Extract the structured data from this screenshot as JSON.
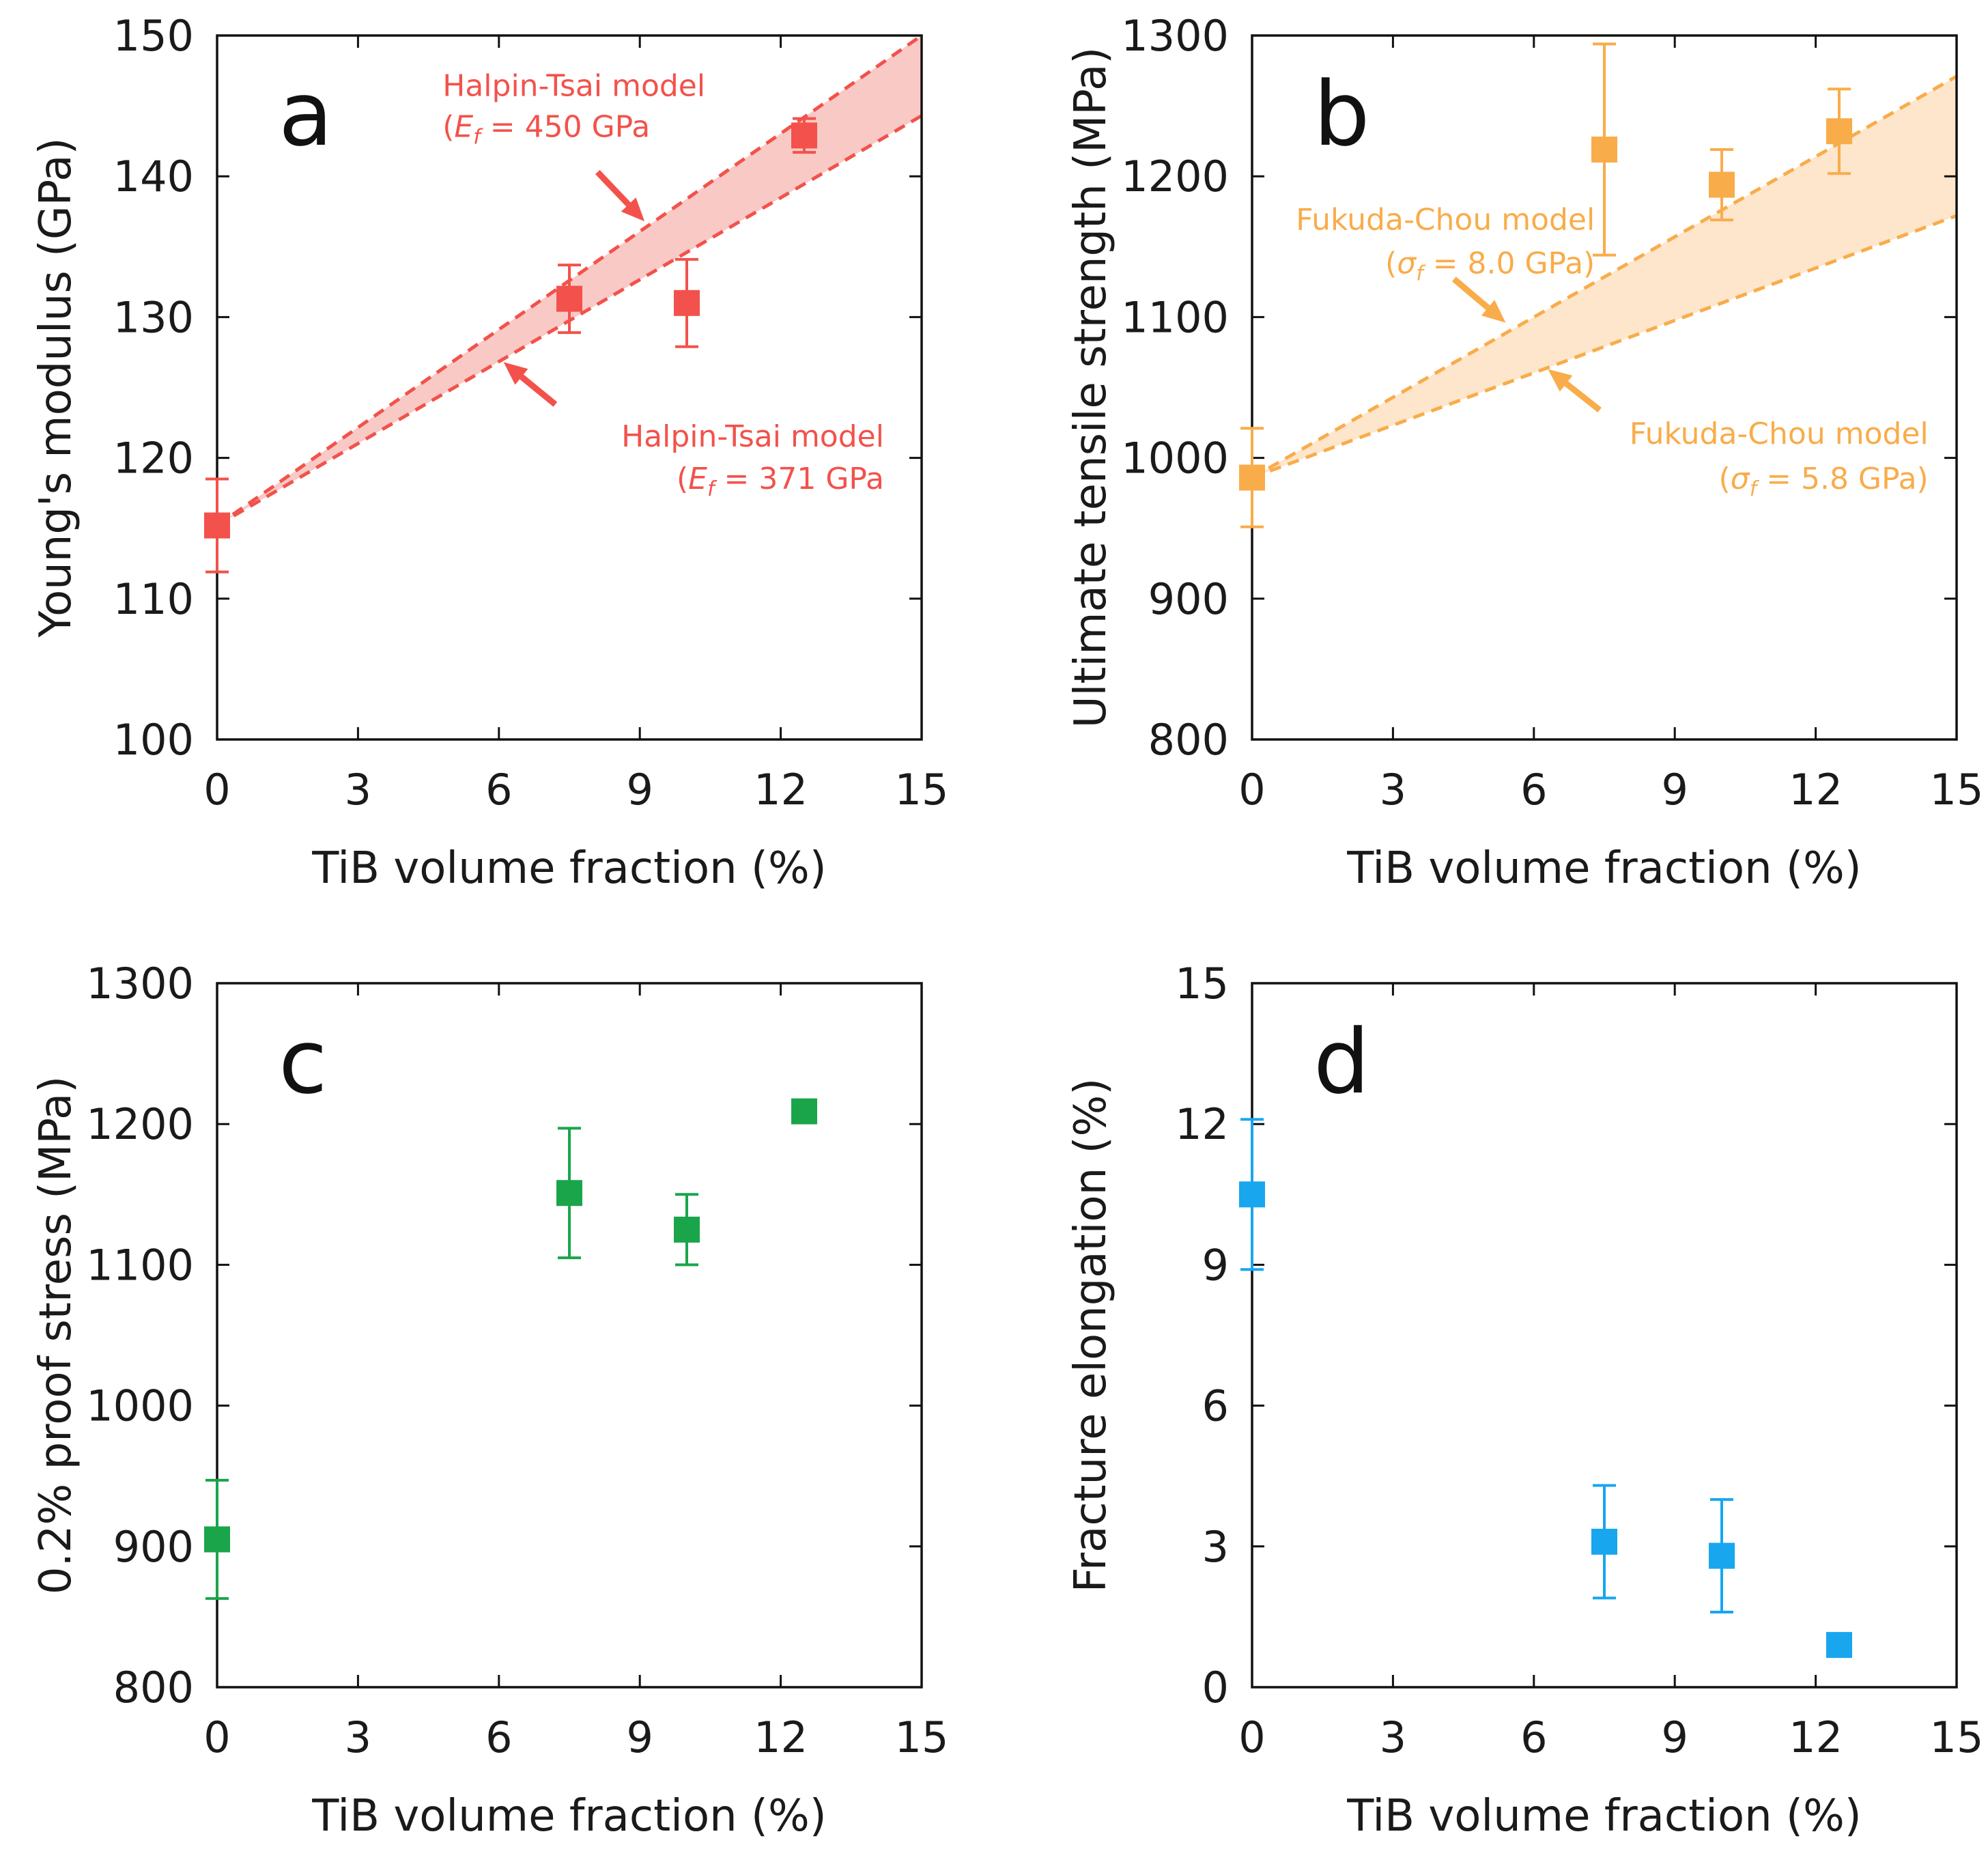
{
  "figure": {
    "panels": [
      "a",
      "b",
      "c",
      "d"
    ]
  },
  "chart_data": [
    {
      "id": "a",
      "type": "scatter",
      "panel_label": "a",
      "color": "#f2524b",
      "fill_color": "#f9c9c6",
      "xlabel": "TiB volume fraction (%)",
      "ylabel": "Young's modulus (GPa)",
      "xlim": [
        0,
        15
      ],
      "ylim": [
        100,
        150
      ],
      "xticks": [
        0,
        3,
        6,
        9,
        12,
        15
      ],
      "yticks": [
        100,
        110,
        120,
        130,
        140,
        150
      ],
      "grid": false,
      "points": [
        {
          "x": 0,
          "y": 115.2,
          "err": 3.3
        },
        {
          "x": 7.5,
          "y": 131.3,
          "err": 2.4
        },
        {
          "x": 10,
          "y": 131.0,
          "err": 3.1
        },
        {
          "x": 12.5,
          "y": 142.9,
          "err": 1.2
        }
      ],
      "models": [
        {
          "name": "Halpin-Tsai model",
          "x": [
            0,
            15
          ],
          "y": [
            115.2,
            150.0
          ]
        },
        {
          "name": "Halpin-Tsai model",
          "x": [
            0,
            15
          ],
          "y": [
            115.2,
            144.3
          ]
        }
      ],
      "shade_between_models": true,
      "annotations": [
        {
          "line1": "Halpin-Tsai model",
          "sym": "E",
          "sub": "f",
          "value": " = 450 GPa",
          "text_x": 4.8,
          "text_y1": 145.7,
          "text_y2": 142.8,
          "anchor": "start",
          "arrow_from": [
            8.1,
            140.3
          ],
          "arrow_to": [
            9.1,
            136.8
          ]
        },
        {
          "line1": "Halpin-Tsai model",
          "sym": "E",
          "sub": "f",
          "value": " = 371 GPa",
          "text_x": 14.2,
          "text_y1": 120.8,
          "text_y2": 117.8,
          "anchor": "end",
          "arrow_from": [
            7.2,
            123.8
          ],
          "arrow_to": [
            6.1,
            126.8
          ]
        }
      ]
    },
    {
      "id": "b",
      "type": "scatter",
      "panel_label": "b",
      "color": "#f9ac4a",
      "fill_color": "#fde6cb",
      "xlabel": "TiB volume fraction (%)",
      "ylabel": "Ultimate tensile strength (MPa)",
      "xlim": [
        0,
        15
      ],
      "ylim": [
        800,
        1300
      ],
      "xticks": [
        0,
        3,
        6,
        9,
        12,
        15
      ],
      "yticks": [
        800,
        900,
        1000,
        1100,
        1200,
        1300
      ],
      "grid": false,
      "points": [
        {
          "x": 0,
          "y": 986,
          "err": 35
        },
        {
          "x": 7.5,
          "y": 1219,
          "err": 75
        },
        {
          "x": 10,
          "y": 1194,
          "err": 25
        },
        {
          "x": 12.5,
          "y": 1232,
          "err": 30
        }
      ],
      "models": [
        {
          "name": "Fukuda-Chou model",
          "x": [
            0,
            15
          ],
          "y": [
            986,
            1271
          ]
        },
        {
          "name": "Fukuda-Chou model",
          "x": [
            0,
            15
          ],
          "y": [
            986,
            1172
          ]
        }
      ],
      "shade_between_models": true,
      "annotations": [
        {
          "line1": "Fukuda-Chou model",
          "sym": "σ",
          "sub": "f",
          "value": " = 8.0 GPa)",
          "text_x": 7.3,
          "text_y1": 1162,
          "text_y2": 1131,
          "anchor": "end",
          "arrow_from": [
            4.3,
            1127
          ],
          "arrow_to": [
            5.4,
            1096
          ]
        },
        {
          "line1": "Fukuda-Chou model",
          "sym": "σ",
          "sub": "f",
          "value": " = 5.8 GPa)",
          "text_x": 14.4,
          "text_y1": 1010,
          "text_y2": 978,
          "anchor": "end",
          "arrow_from": [
            7.4,
            1034
          ],
          "arrow_to": [
            6.3,
            1063
          ]
        }
      ]
    },
    {
      "id": "c",
      "type": "scatter",
      "panel_label": "c",
      "color": "#1aa54b",
      "xlabel": "TiB volume fraction (%)",
      "ylabel": "0.2% proof stress (MPa)",
      "xlim": [
        0,
        15
      ],
      "ylim": [
        800,
        1300
      ],
      "xticks": [
        0,
        3,
        6,
        9,
        12,
        15
      ],
      "yticks": [
        800,
        900,
        1000,
        1100,
        1200,
        1300
      ],
      "grid": false,
      "points": [
        {
          "x": 0,
          "y": 905,
          "err": 42
        },
        {
          "x": 7.5,
          "y": 1151,
          "err": 46
        },
        {
          "x": 10,
          "y": 1125,
          "err": 25
        },
        {
          "x": 12.5,
          "y": 1209,
          "err": 0
        }
      ]
    },
    {
      "id": "d",
      "type": "scatter",
      "panel_label": "d",
      "color": "#18a6ee",
      "xlabel": "TiB volume fraction (%)",
      "ylabel": "Fracture elongation (%)",
      "xlim": [
        0,
        15
      ],
      "ylim": [
        0,
        15
      ],
      "xticks": [
        0,
        3,
        6,
        9,
        12,
        15
      ],
      "yticks": [
        0,
        3,
        6,
        9,
        12,
        15
      ],
      "grid": false,
      "points": [
        {
          "x": 0,
          "y": 10.5,
          "err": 1.6
        },
        {
          "x": 7.5,
          "y": 3.1,
          "err": 1.2
        },
        {
          "x": 10,
          "y": 2.8,
          "err": 1.2
        },
        {
          "x": 12.5,
          "y": 0.9,
          "err": 0
        }
      ]
    }
  ]
}
